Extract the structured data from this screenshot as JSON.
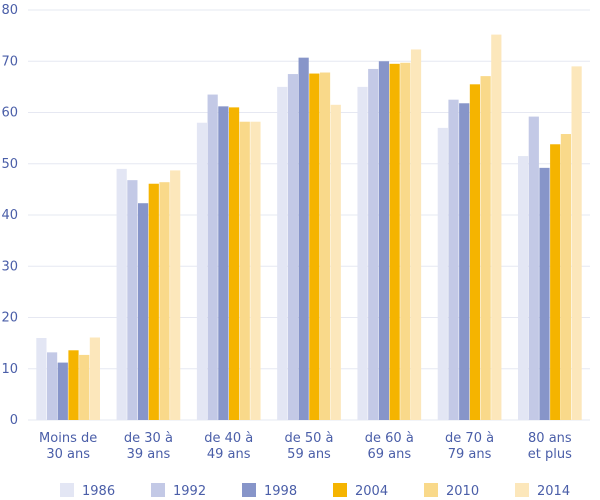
{
  "chart_data": {
    "type": "bar",
    "title": "",
    "xlabel": "",
    "ylabel": "",
    "ylim": [
      0,
      80
    ],
    "yticks": [
      0,
      10,
      20,
      30,
      40,
      50,
      60,
      70,
      80
    ],
    "grid": true,
    "legend_position": "bottom",
    "categories": [
      [
        "Moins de",
        "30 ans"
      ],
      [
        "de 30 à",
        "39 ans"
      ],
      [
        "de 40 à",
        "49 ans"
      ],
      [
        "de 50 à",
        "59 ans"
      ],
      [
        "de 60 à",
        "69 ans"
      ],
      [
        "de 70 à",
        "79 ans"
      ],
      [
        "80 ans",
        "et plus"
      ]
    ],
    "series": [
      {
        "name": "1986",
        "color": "#e3e6f4",
        "values": [
          16.0,
          49.0,
          58.0,
          65.0,
          65.0,
          57.0,
          51.5
        ]
      },
      {
        "name": "1992",
        "color": "#c3c9e6",
        "values": [
          13.2,
          46.8,
          63.5,
          67.5,
          68.5,
          62.5,
          59.2
        ]
      },
      {
        "name": "1998",
        "color": "#8795c9",
        "values": [
          11.2,
          42.3,
          61.2,
          70.7,
          70.0,
          61.8,
          49.2
        ]
      },
      {
        "name": "2004",
        "color": "#f5b400",
        "values": [
          13.6,
          46.1,
          61.0,
          67.6,
          69.5,
          65.5,
          53.8
        ]
      },
      {
        "name": "2010",
        "color": "#f9d98a",
        "values": [
          12.7,
          46.4,
          58.2,
          67.8,
          69.7,
          67.1,
          55.8
        ]
      },
      {
        "name": "2014",
        "color": "#fce7bb",
        "values": [
          16.1,
          48.7,
          58.2,
          61.5,
          72.3,
          75.2,
          69.0
        ]
      }
    ]
  }
}
